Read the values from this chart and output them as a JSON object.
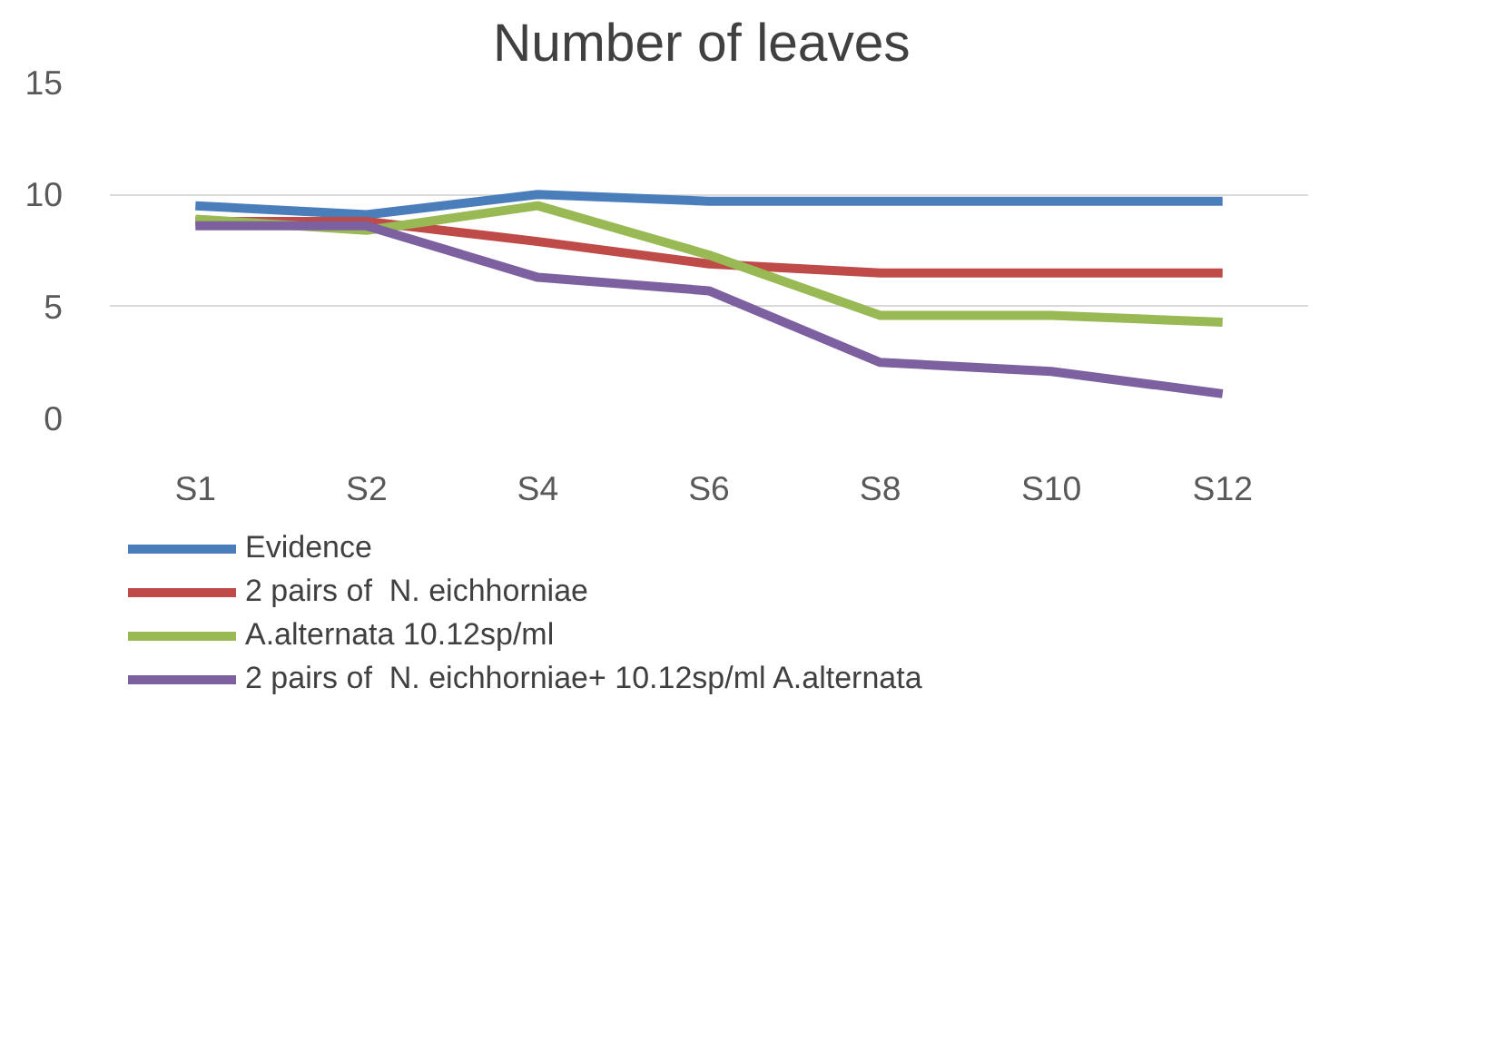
{
  "chart_data": {
    "type": "line",
    "title": "Number of  leaves",
    "categories": [
      "S1",
      "S2",
      "S4",
      "S6",
      "S8",
      "S10",
      "S12"
    ],
    "series": [
      {
        "name": "Evidence",
        "color": "#4a7ebb",
        "values": [
          9.5,
          9.1,
          10,
          9.7,
          9.7,
          9.7,
          9.7
        ]
      },
      {
        "name": "2 pairs of  N. eichhorniae",
        "color": "#be4b48",
        "values": [
          8.8,
          8.8,
          7.9,
          6.9,
          6.5,
          6.5,
          6.5
        ]
      },
      {
        "name": "A.alternata 10.12sp/ml",
        "color": "#98b954",
        "values": [
          8.9,
          8.4,
          9.5,
          7.3,
          4.6,
          4.6,
          4.3
        ]
      },
      {
        "name": "2 pairs of  N. eichhorniae+ 10.12sp/ml A.alternata",
        "color": "#7d60a0",
        "values": [
          8.6,
          8.6,
          6.3,
          5.7,
          2.5,
          2.1,
          1.1
        ]
      }
    ],
    "ylim": [
      0,
      15
    ],
    "yticks": [
      0,
      5,
      10,
      15
    ],
    "grid": "y",
    "legend": "bottom",
    "marker": "none",
    "line_style": "solid"
  }
}
